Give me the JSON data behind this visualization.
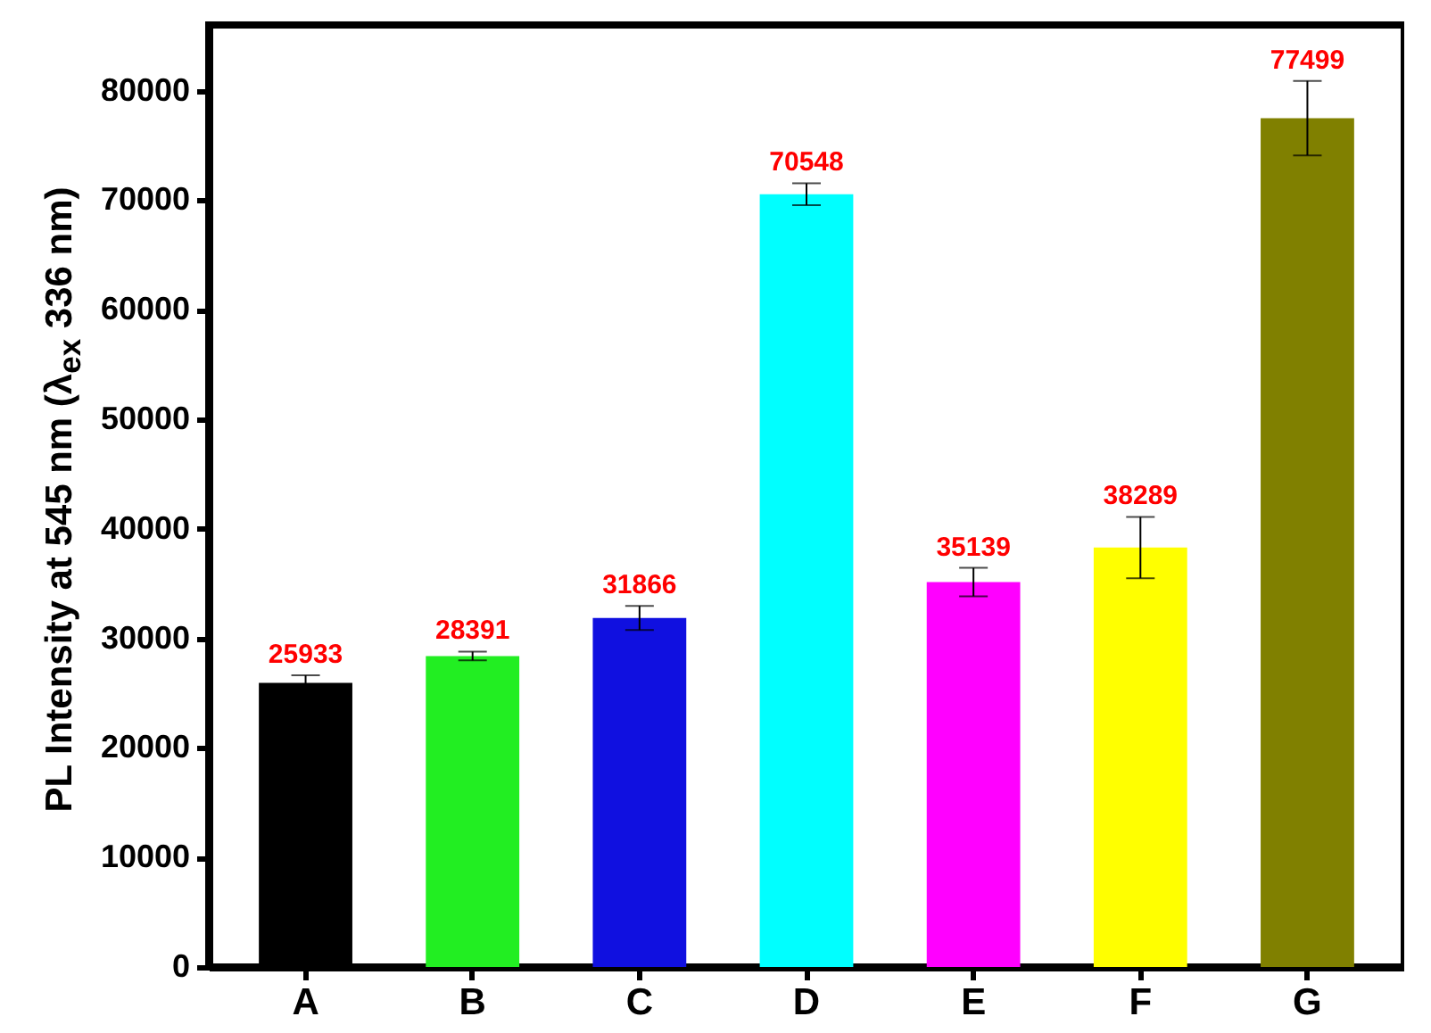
{
  "chart_data": {
    "type": "bar",
    "ylabel": "PL Intensity at 545 nm (λ$_{ex}$ 336 nm)",
    "categories": [
      "A",
      "B",
      "C",
      "D",
      "E",
      "F",
      "G"
    ],
    "values": [
      25933,
      28391,
      31866,
      70548,
      35139,
      38289,
      77499
    ],
    "colors": [
      "#000000",
      "#22ee22",
      "#1010e0",
      "#00ffff",
      "#ff00ff",
      "#ffff00",
      "#808000"
    ],
    "errors": [
      700,
      400,
      1100,
      1000,
      1300,
      2800,
      3400
    ],
    "data_labels": true,
    "ylim": [
      0,
      86000
    ],
    "yticks": [
      0,
      10000,
      20000,
      30000,
      40000,
      50000,
      60000,
      70000,
      80000
    ],
    "grid": false
  }
}
